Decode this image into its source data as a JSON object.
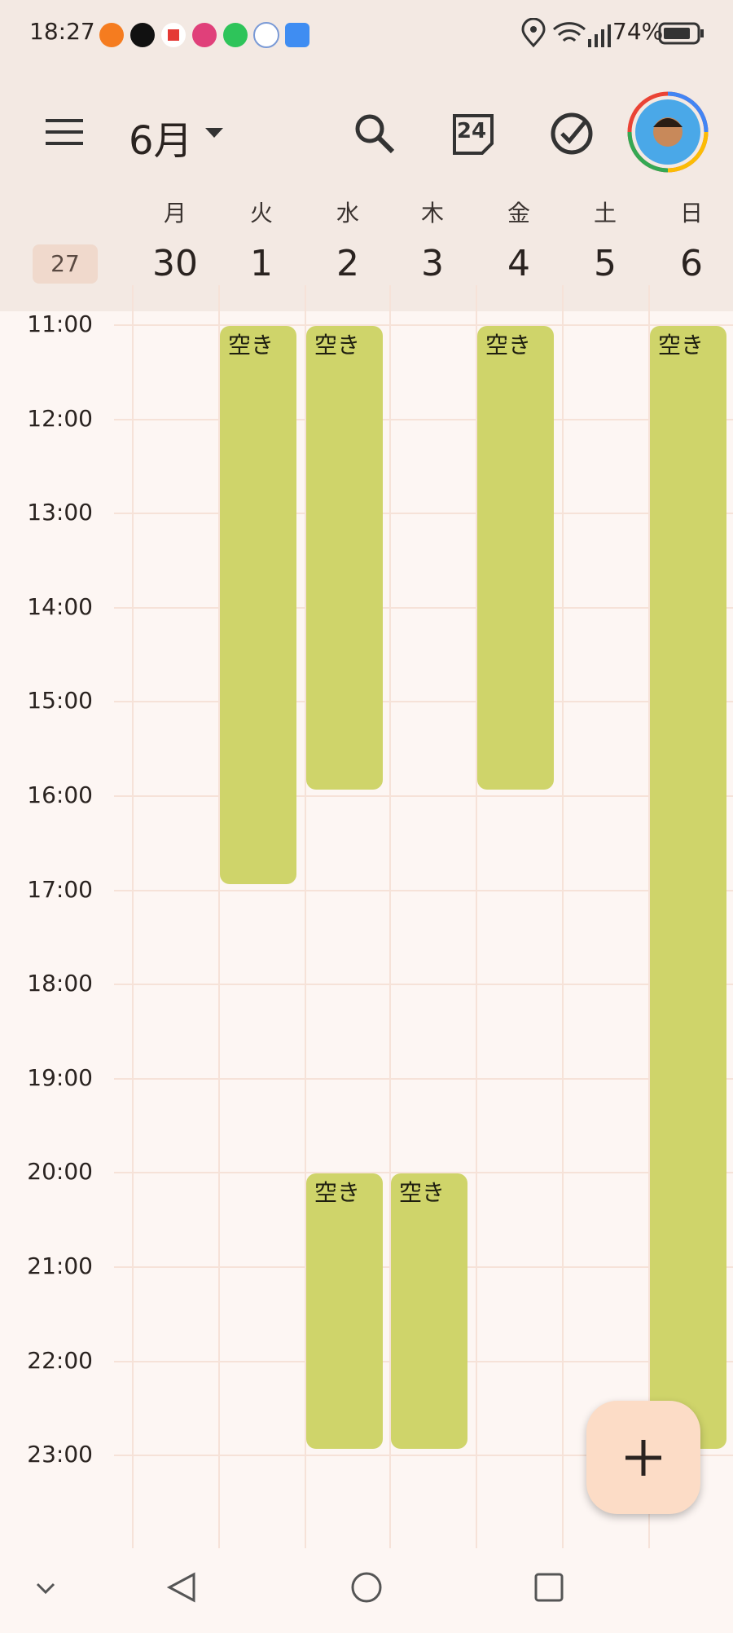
{
  "status_bar": {
    "time": "18:27",
    "battery": "74%"
  },
  "header": {
    "month": "6月",
    "today_icon": "24"
  },
  "week": {
    "number": 27,
    "days": [
      {
        "weekday": "月",
        "date": 30
      },
      {
        "weekday": "火",
        "date": 1
      },
      {
        "weekday": "水",
        "date": 2
      },
      {
        "weekday": "木",
        "date": 3
      },
      {
        "weekday": "金",
        "date": 4
      },
      {
        "weekday": "土",
        "date": 5
      },
      {
        "weekday": "日",
        "date": 6
      }
    ]
  },
  "hours": [
    "11:00",
    "12:00",
    "13:00",
    "14:00",
    "15:00",
    "16:00",
    "17:00",
    "18:00",
    "19:00",
    "20:00",
    "21:00",
    "22:00",
    "23:00"
  ],
  "events": [
    {
      "title": "空き"
    },
    {
      "title": "空き"
    },
    {
      "title": "空き"
    },
    {
      "title": "空き"
    },
    {
      "title": "空き"
    },
    {
      "title": "空き"
    }
  ]
}
